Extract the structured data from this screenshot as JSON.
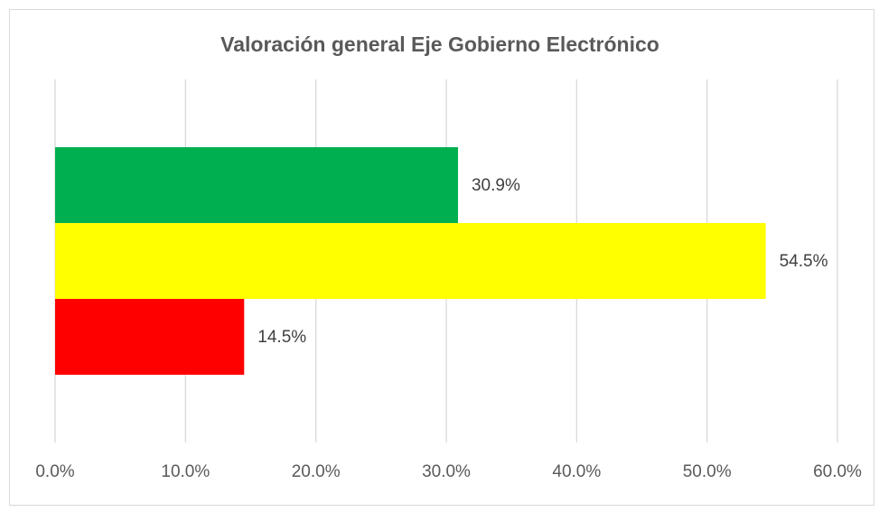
{
  "chart_data": {
    "type": "barh",
    "title": "Valoración general Eje Gobierno Electrónico",
    "categories": [
      null
    ],
    "series": [
      {
        "color": "#00b050",
        "values": [
          30.9
        ],
        "value_labels": [
          "30.9%"
        ]
      },
      {
        "color": "#ffff00",
        "values": [
          54.5
        ],
        "value_labels": [
          "54.5%"
        ]
      },
      {
        "color": "#ff0000",
        "values": [
          14.5
        ],
        "value_labels": [
          "14.5%"
        ]
      }
    ],
    "xlim": [
      0,
      60
    ],
    "xticks": [
      {
        "value": 0,
        "label": "0.0%"
      },
      {
        "value": 10,
        "label": "10.0%"
      },
      {
        "value": 20,
        "label": "20.0%"
      },
      {
        "value": 30,
        "label": "30.0%"
      },
      {
        "value": 40,
        "label": "40.0%"
      },
      {
        "value": 50,
        "label": "50.0%"
      },
      {
        "value": 60,
        "label": "60.0%"
      }
    ],
    "grid": true
  }
}
